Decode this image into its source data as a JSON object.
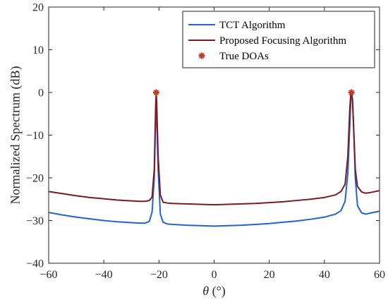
{
  "chart_data": {
    "type": "line",
    "xlabel_symbol": "θ",
    "xlabel_unit": " (°)",
    "ylabel": "Normalized Spectrum (dB)",
    "xlim": [
      -60,
      60
    ],
    "ylim": [
      -40,
      20
    ],
    "xticks": [
      -60,
      -40,
      -20,
      0,
      20,
      40,
      60
    ],
    "yticks": [
      -40,
      -30,
      -20,
      -10,
      0,
      10,
      20
    ],
    "xtick_labels": [
      "−60",
      "−40",
      "−20",
      "0",
      "20",
      "40",
      "60"
    ],
    "ytick_labels": [
      "−40",
      "−30",
      "−20",
      "−10",
      "0",
      "10",
      "20"
    ],
    "grid": false,
    "legend_position": "top-right",
    "series": [
      {
        "name": "TCT Algorithm",
        "color": "#1f63d6",
        "marker": "none",
        "x": [
          -60,
          -55,
          -50,
          -45,
          -40,
          -35,
          -30,
          -27,
          -25,
          -23.5,
          -22.5,
          -21.7,
          -21.2,
          -21,
          -20.8,
          -20.3,
          -19.5,
          -18.5,
          -17,
          -15,
          -10,
          -5,
          0,
          5,
          10,
          15,
          20,
          25,
          30,
          35,
          40,
          44,
          46,
          47.5,
          48.5,
          49.2,
          49.6,
          49.9,
          50.2,
          50.6,
          51.2,
          52,
          53.5,
          55,
          57,
          60
        ],
        "y": [
          -28.1,
          -28.7,
          -29.2,
          -29.6,
          -30.0,
          -30.3,
          -30.5,
          -30.6,
          -30.6,
          -30.2,
          -28.0,
          -20.0,
          -6.0,
          -1.0,
          -6.0,
          -18.0,
          -28.5,
          -30.4,
          -30.8,
          -30.9,
          -31.1,
          -31.2,
          -31.3,
          -31.2,
          -31.1,
          -30.9,
          -30.7,
          -30.4,
          -30.1,
          -29.7,
          -29.2,
          -28.5,
          -27.7,
          -25.5,
          -19.0,
          -8.0,
          -1.5,
          -0.5,
          -1.5,
          -8.0,
          -20.0,
          -26.5,
          -28.2,
          -28.5,
          -28.2,
          -27.8
        ]
      },
      {
        "name": "Proposed Focusing Algorithm",
        "color": "#7b1a25",
        "marker": "none",
        "x": [
          -60,
          -55,
          -50,
          -45,
          -40,
          -35,
          -30,
          -27,
          -25,
          -23.5,
          -22.5,
          -21.7,
          -21.2,
          -21,
          -20.8,
          -20.3,
          -19.5,
          -18.5,
          -17,
          -15,
          -10,
          -5,
          0,
          5,
          10,
          15,
          20,
          25,
          30,
          35,
          40,
          44,
          46,
          47.5,
          48.5,
          49.2,
          49.6,
          49.9,
          50.2,
          50.6,
          51.2,
          52,
          53.5,
          55,
          57,
          60
        ],
        "y": [
          -23.2,
          -23.7,
          -24.2,
          -24.6,
          -24.9,
          -25.2,
          -25.4,
          -25.5,
          -25.5,
          -25.3,
          -24.5,
          -18.0,
          -3.0,
          0,
          -3.0,
          -15.0,
          -24.0,
          -25.7,
          -25.9,
          -26.0,
          -26.1,
          -26.2,
          -26.3,
          -26.2,
          -26.1,
          -26.0,
          -25.8,
          -25.6,
          -25.3,
          -25.0,
          -24.6,
          -24.0,
          -23.2,
          -21.5,
          -15.0,
          -4.0,
          0,
          -0.3,
          -2.0,
          -8.0,
          -18.0,
          -22.0,
          -23.3,
          -23.6,
          -23.4,
          -23.0
        ]
      },
      {
        "name": "True DOAs",
        "color": "#d62728",
        "marker": "star",
        "x": [
          -21,
          49.8
        ],
        "y": [
          0,
          0
        ]
      }
    ]
  }
}
